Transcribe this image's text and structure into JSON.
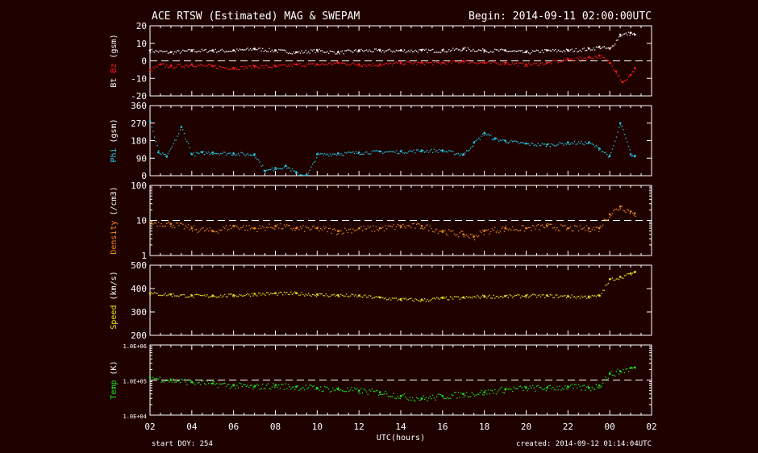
{
  "header": {
    "title": "ACE RTSW (Estimated) MAG & SWEPAM",
    "begin": "Begin: 2014-09-11 02:00:00UTC"
  },
  "footer": {
    "start_doy": "start DOY: 254",
    "created": "created: 2014-09-12 01:14:04UTC"
  },
  "colors": {
    "background": "#1f0200",
    "frame": "#ffffff",
    "bt": "#ffffff",
    "bz": "#ff1a1a",
    "phi": "#22c8e6",
    "density": "#f08a1e",
    "speed": "#e6e61a",
    "temp": "#1ee61e"
  },
  "chart_data": [
    {
      "type": "scatter",
      "ylabel_parts": [
        "Bt",
        "Bz",
        "(gsm)"
      ],
      "ylim": [
        -20,
        20
      ],
      "yticks": [
        -20,
        -10,
        0,
        10,
        20
      ],
      "ytick_labels": [
        "-20",
        "-10",
        "0",
        "10",
        "20"
      ],
      "reference_line": 0,
      "series": [
        {
          "name": "Bt",
          "x": [
            0,
            1,
            2,
            3,
            4,
            5,
            6,
            7,
            8,
            9,
            10,
            11,
            12,
            13,
            14,
            15,
            16,
            17,
            18,
            19,
            20,
            21,
            21.5,
            22,
            22.5,
            23,
            23.2
          ],
          "values": [
            6,
            5,
            6,
            6,
            6,
            7,
            6,
            5,
            6,
            5,
            6,
            6,
            6,
            6,
            6,
            7,
            6,
            6,
            5,
            6,
            6,
            7,
            8,
            7,
            15,
            16,
            15
          ]
        },
        {
          "name": "Bz",
          "x": [
            0,
            0.5,
            1,
            2,
            3,
            4,
            5,
            6,
            7,
            8,
            9,
            10,
            11,
            12,
            13,
            14,
            15,
            16,
            17,
            18,
            19,
            20,
            21,
            21.5,
            22,
            22.3,
            22.6,
            23,
            23.2
          ],
          "values": [
            -5,
            -2,
            -3,
            -2,
            -3,
            -4,
            -3,
            -3,
            -2,
            -2,
            -1,
            -2,
            -2,
            -1,
            -1,
            -1,
            0,
            -1,
            -1,
            -2,
            -1,
            1,
            2,
            3,
            -1,
            -6,
            -12,
            -8,
            -4
          ]
        }
      ]
    },
    {
      "type": "scatter",
      "ylabel_parts": [
        "Phi",
        "(gsm)"
      ],
      "ylim": [
        0,
        360
      ],
      "yticks": [
        0,
        90,
        180,
        270,
        360
      ],
      "ytick_labels": [
        "0",
        "90",
        "180",
        "270",
        "360"
      ],
      "series": [
        {
          "name": "Phi",
          "x": [
            0,
            0.4,
            0.8,
            1.5,
            2,
            2.5,
            3,
            4,
            5,
            5.5,
            6,
            6.5,
            7,
            7.5,
            8,
            9,
            10,
            11,
            12,
            13,
            14,
            15,
            15.5,
            16,
            16.5,
            17,
            18,
            19,
            20,
            21,
            21.5,
            22,
            22.5,
            23,
            23.2
          ],
          "values": [
            280,
            120,
            100,
            250,
            110,
            120,
            120,
            115,
            110,
            25,
            40,
            50,
            15,
            0,
            110,
            115,
            120,
            125,
            125,
            130,
            130,
            110,
            170,
            220,
            190,
            180,
            165,
            160,
            170,
            170,
            140,
            100,
            270,
            110,
            100
          ]
        }
      ]
    },
    {
      "type": "scatter",
      "ylabel_parts": [
        "Density",
        "(/cm3)"
      ],
      "log_scale": true,
      "ylim": [
        1,
        100
      ],
      "yticks": [
        1,
        10,
        100
      ],
      "ytick_labels": [
        "1",
        "10",
        "100"
      ],
      "reference_line": 10,
      "series": [
        {
          "name": "Density",
          "x": [
            0,
            1,
            2,
            3,
            4,
            5,
            6,
            7,
            8,
            9,
            10,
            11,
            12,
            13,
            14,
            15,
            15.5,
            16,
            17,
            18,
            19,
            20,
            21,
            21.5,
            22,
            22.5,
            23,
            23.2
          ],
          "values": [
            9,
            8,
            6,
            5,
            7,
            6,
            7,
            6,
            6,
            5,
            6,
            6,
            7,
            7,
            5,
            4,
            3.5,
            5,
            6,
            6,
            7,
            6,
            6,
            6,
            15,
            25,
            18,
            16
          ]
        }
      ]
    },
    {
      "type": "scatter",
      "ylabel_parts": [
        "Speed",
        "(km/s)"
      ],
      "ylim": [
        200,
        500
      ],
      "yticks": [
        200,
        300,
        400,
        500
      ],
      "ytick_labels": [
        "200",
        "300",
        "400",
        "500"
      ],
      "series": [
        {
          "name": "Speed",
          "x": [
            0,
            1,
            2,
            3,
            4,
            5,
            6,
            7,
            8,
            9,
            10,
            11,
            12,
            13,
            14,
            15,
            16,
            17,
            18,
            19,
            20,
            21,
            21.5,
            22,
            22.5,
            23,
            23.2
          ],
          "values": [
            380,
            375,
            370,
            370,
            372,
            378,
            380,
            380,
            375,
            372,
            370,
            362,
            355,
            352,
            360,
            362,
            368,
            368,
            370,
            370,
            368,
            366,
            370,
            440,
            450,
            465,
            470
          ]
        }
      ]
    },
    {
      "type": "scatter",
      "ylabel_parts": [
        "Temp",
        "(K)"
      ],
      "log_scale": true,
      "ylim": [
        10000,
        1000000
      ],
      "yticks": [
        10000,
        100000,
        1000000
      ],
      "ytick_labels": [
        "1.0E+04",
        "1.0E+05",
        "1.0E+06"
      ],
      "reference_line": 100000,
      "series": [
        {
          "name": "Temp",
          "x": [
            0,
            1,
            2,
            3,
            4,
            5,
            6,
            7,
            8,
            9,
            10,
            11,
            12,
            13,
            14,
            15,
            16,
            17,
            18,
            19,
            20,
            21,
            21.5,
            22,
            22.5,
            23,
            23.2
          ],
          "values": [
            120000,
            100000,
            90000,
            80000,
            70000,
            65000,
            70000,
            65000,
            60000,
            55000,
            50000,
            45000,
            35000,
            30000,
            35000,
            40000,
            45000,
            55000,
            60000,
            60000,
            65000,
            60000,
            70000,
            150000,
            180000,
            220000,
            230000
          ]
        }
      ]
    }
  ],
  "x_axis": {
    "label": "UTC(hours)",
    "range_hours": [
      0,
      24
    ],
    "tick_labels": [
      "02",
      "04",
      "06",
      "08",
      "10",
      "12",
      "14",
      "16",
      "18",
      "20",
      "22",
      "00",
      "02"
    ]
  }
}
